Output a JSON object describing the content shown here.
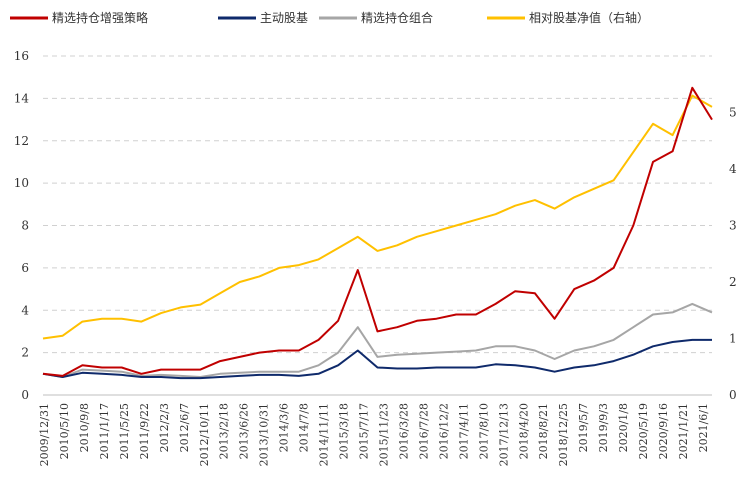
{
  "chart_data": {
    "type": "line",
    "legend_position": "top",
    "grid": "horizontal dashed",
    "colors": {
      "enhanced": "#C00000",
      "active": "#0F2A6B",
      "portfolio": "#A6A6A6",
      "relative": "#FFC000"
    },
    "legend": [
      {
        "key": "enhanced",
        "label": "精选持仓增强策略"
      },
      {
        "key": "active",
        "label": "主动股基"
      },
      {
        "key": "portfolio",
        "label": "精选持仓组合"
      },
      {
        "key": "relative",
        "label": "相对股基净值（右轴）"
      }
    ],
    "y_left": {
      "range": [
        0,
        16
      ],
      "ticks": [
        "0",
        "2",
        "4",
        "6",
        "8",
        "10",
        "12",
        "14",
        "16"
      ]
    },
    "y_right": {
      "range": [
        0,
        6
      ],
      "ticks": [
        "0",
        "1",
        "2",
        "3",
        "4",
        "5"
      ]
    },
    "x_ticks": [
      "2009/12/31",
      "2010/5/10",
      "2010/9/8",
      "2011/1/17",
      "2011/5/25",
      "2011/9/22",
      "2012/2/3",
      "2012/6/7",
      "2012/10/11",
      "2013/2/18",
      "2013/6/26",
      "2013/10/31",
      "2014/3/6",
      "2014/7/8",
      "2014/11/11",
      "2015/3/18",
      "2015/7/17",
      "2015/11/23",
      "2016/3/28",
      "2016/7/28",
      "2016/12/2",
      "2017/4/11",
      "2017/8/10",
      "2017/12/13",
      "2018/4/20",
      "2018/8/21",
      "2018/12/25",
      "2019/5/7",
      "2019/9/3",
      "2020/1/8",
      "2020/5/19",
      "2020/9/16",
      "2021/1/21",
      "2021/6/1"
    ],
    "series": [
      {
        "key": "enhanced",
        "axis": "left",
        "values": [
          1.0,
          0.9,
          1.4,
          1.3,
          1.3,
          1.0,
          1.2,
          1.2,
          1.2,
          1.6,
          1.8,
          2.0,
          2.1,
          2.1,
          2.6,
          3.5,
          5.9,
          3.0,
          3.2,
          3.5,
          3.6,
          3.8,
          3.8,
          4.3,
          4.9,
          4.8,
          3.6,
          5.0,
          5.4,
          6.0,
          8.0,
          11.0,
          11.5,
          14.5,
          13.0
        ]
      },
      {
        "key": "active",
        "axis": "left",
        "values": [
          1.0,
          0.85,
          1.05,
          1.0,
          0.95,
          0.85,
          0.85,
          0.8,
          0.8,
          0.85,
          0.9,
          0.95,
          0.95,
          0.9,
          1.0,
          1.4,
          2.1,
          1.3,
          1.25,
          1.25,
          1.3,
          1.3,
          1.3,
          1.45,
          1.4,
          1.3,
          1.1,
          1.3,
          1.4,
          1.6,
          1.9,
          2.3,
          2.5,
          2.6,
          2.6
        ]
      },
      {
        "key": "portfolio",
        "axis": "left",
        "values": [
          1.0,
          0.85,
          1.2,
          1.15,
          1.1,
          0.9,
          0.95,
          0.9,
          0.85,
          1.0,
          1.05,
          1.1,
          1.1,
          1.1,
          1.4,
          2.0,
          3.2,
          1.8,
          1.9,
          1.95,
          2.0,
          2.05,
          2.1,
          2.3,
          2.3,
          2.1,
          1.7,
          2.1,
          2.3,
          2.6,
          3.2,
          3.8,
          3.9,
          4.3,
          3.9
        ]
      },
      {
        "key": "relative",
        "axis": "right",
        "values": [
          1.0,
          1.05,
          1.3,
          1.35,
          1.35,
          1.3,
          1.45,
          1.55,
          1.6,
          1.8,
          2.0,
          2.1,
          2.25,
          2.3,
          2.4,
          2.6,
          2.8,
          2.55,
          2.65,
          2.8,
          2.9,
          3.0,
          3.1,
          3.2,
          3.35,
          3.45,
          3.3,
          3.5,
          3.65,
          3.8,
          4.3,
          4.8,
          4.6,
          5.3,
          5.1
        ]
      }
    ]
  }
}
